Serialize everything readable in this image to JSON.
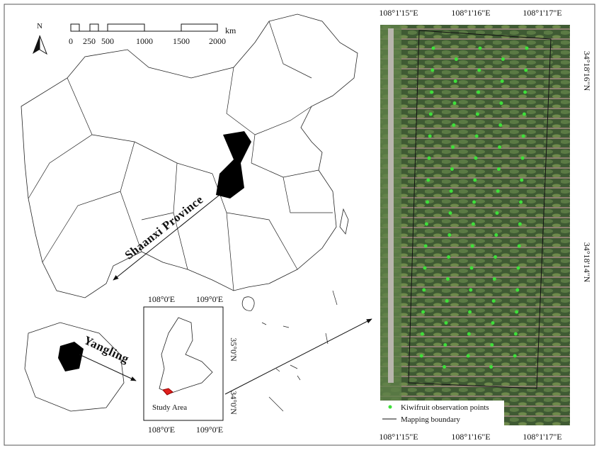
{
  "north": "N",
  "scale": {
    "labels": [
      "0",
      "250",
      "500",
      "1000",
      "1500",
      "2000"
    ],
    "unit": "km"
  },
  "labels": {
    "province": "Shaanxi Province",
    "district": "Yangling"
  },
  "inset": {
    "top": [
      "108°0'E",
      "109°0'E"
    ],
    "bottom": [
      "108°0'E",
      "109°0'E"
    ],
    "right": [
      "35°0'N",
      "34°0'N"
    ],
    "caption": "Study Area"
  },
  "aerial": {
    "top": [
      "108°1'15\"E",
      "108°1'16\"E",
      "108°1'17\"E"
    ],
    "bottom": [
      "108°1'15\"E",
      "108°1'16\"E",
      "108°1'17\"E"
    ],
    "right": [
      "34°18'16\"N",
      "34°18'14\"N"
    ],
    "legend": [
      "Kiwifruit observation points",
      "Mapping boundary"
    ]
  }
}
